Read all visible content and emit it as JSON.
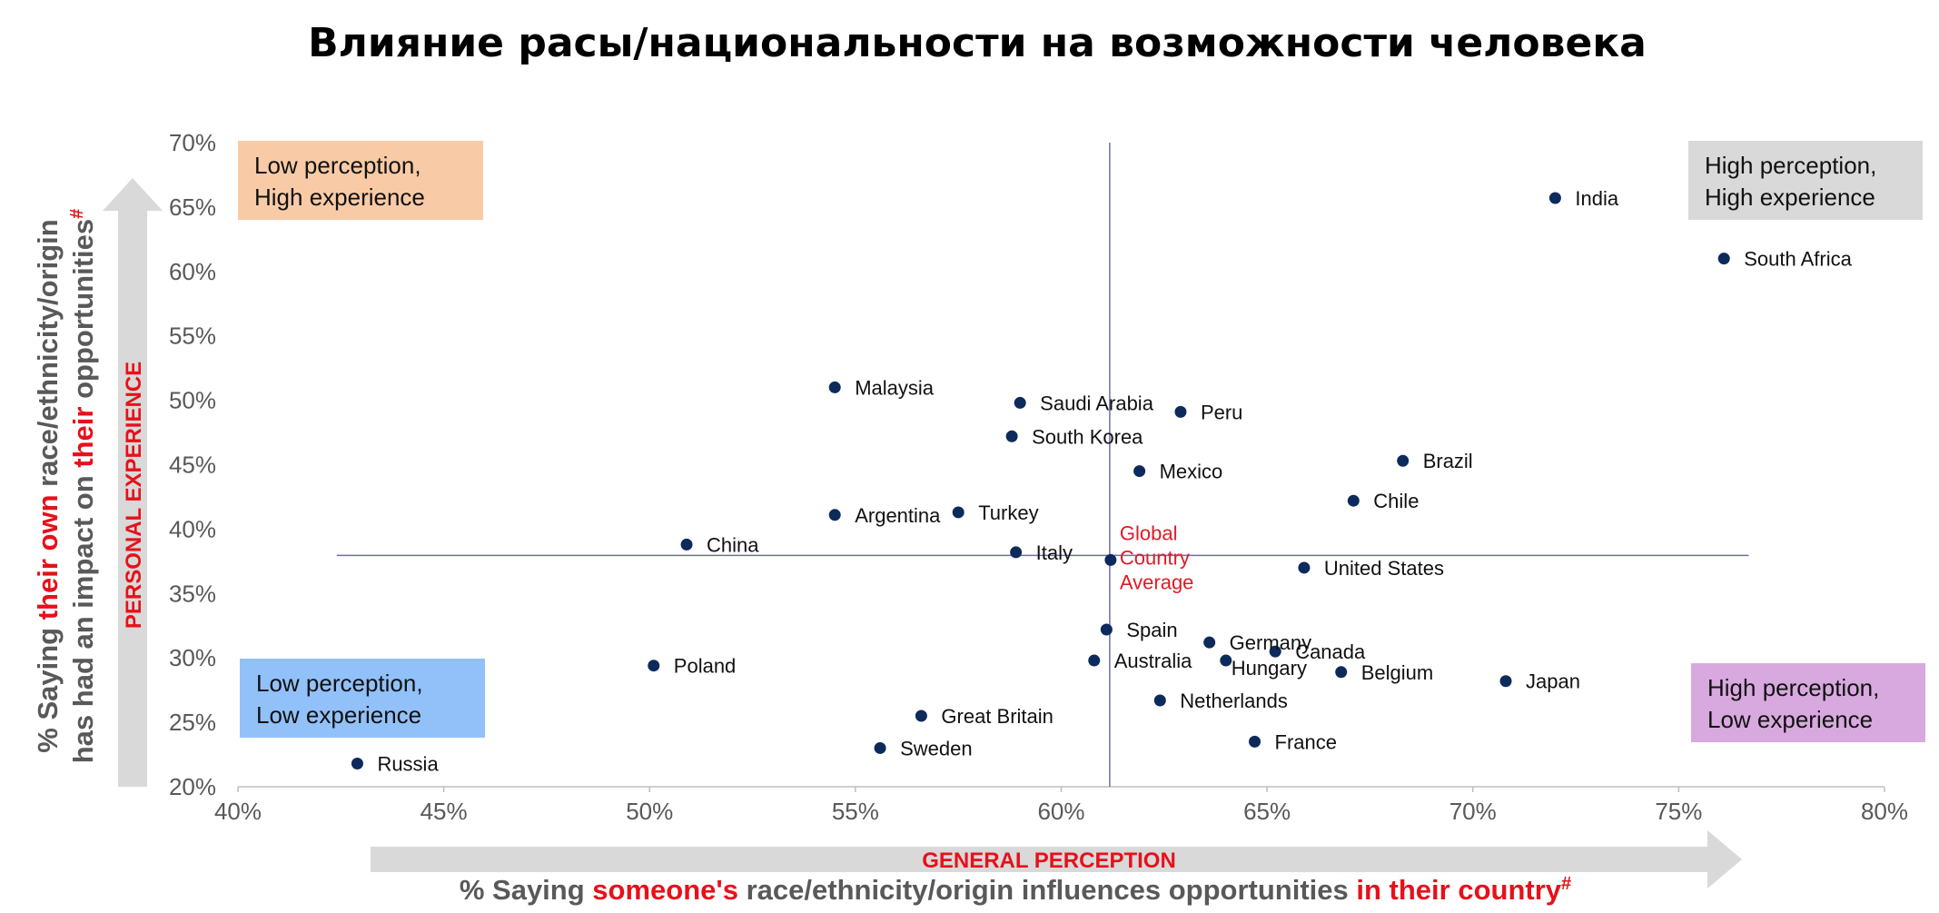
{
  "chart_data": {
    "type": "scatter",
    "title": "Влияние расы/национальности на возможности человека",
    "xlim": [
      0.4,
      0.8
    ],
    "ylim": [
      0.2,
      0.7
    ],
    "x_ticks": [
      "40%",
      "45%",
      "50%",
      "55%",
      "60%",
      "65%",
      "70%",
      "75%",
      "80%"
    ],
    "y_ticks": [
      "20%",
      "25%",
      "30%",
      "35%",
      "40%",
      "45%",
      "50%",
      "55%",
      "60%",
      "65%",
      "70%"
    ],
    "points": [
      {
        "name": "India",
        "x": 0.72,
        "y": 0.657
      },
      {
        "name": "South Africa",
        "x": 0.761,
        "y": 0.61
      },
      {
        "name": "Malaysia",
        "x": 0.545,
        "y": 0.51
      },
      {
        "name": "Saudi Arabia",
        "x": 0.59,
        "y": 0.498
      },
      {
        "name": "Peru",
        "x": 0.629,
        "y": 0.491
      },
      {
        "name": "South Korea",
        "x": 0.588,
        "y": 0.472
      },
      {
        "name": "Brazil",
        "x": 0.683,
        "y": 0.453
      },
      {
        "name": "Mexico",
        "x": 0.619,
        "y": 0.445
      },
      {
        "name": "Chile",
        "x": 0.671,
        "y": 0.422
      },
      {
        "name": "Argentina",
        "x": 0.545,
        "y": 0.411
      },
      {
        "name": "Turkey",
        "x": 0.575,
        "y": 0.413
      },
      {
        "name": "China",
        "x": 0.509,
        "y": 0.388
      },
      {
        "name": "Italy",
        "x": 0.589,
        "y": 0.382
      },
      {
        "name": "United States",
        "x": 0.659,
        "y": 0.37
      },
      {
        "name": "Spain",
        "x": 0.611,
        "y": 0.322
      },
      {
        "name": "Germany",
        "x": 0.636,
        "y": 0.312
      },
      {
        "name": "Canada",
        "x": 0.652,
        "y": 0.305
      },
      {
        "name": "Australia",
        "x": 0.608,
        "y": 0.298
      },
      {
        "name": "Hungary",
        "x": 0.64,
        "y": 0.298
      },
      {
        "name": "Belgium",
        "x": 0.668,
        "y": 0.289
      },
      {
        "name": "Japan",
        "x": 0.708,
        "y": 0.282
      },
      {
        "name": "Poland",
        "x": 0.501,
        "y": 0.294
      },
      {
        "name": "Netherlands",
        "x": 0.624,
        "y": 0.267
      },
      {
        "name": "Great Britain",
        "x": 0.566,
        "y": 0.255
      },
      {
        "name": "France",
        "x": 0.647,
        "y": 0.235
      },
      {
        "name": "Sweden",
        "x": 0.556,
        "y": 0.23
      },
      {
        "name": "Russia",
        "x": 0.429,
        "y": 0.218
      }
    ],
    "average": {
      "x": 0.612,
      "y": 0.376,
      "label_lines": [
        "Global",
        "Country",
        "Average"
      ]
    },
    "quadrants": [
      {
        "key": "tl",
        "lines": [
          "Low perception,",
          "High experience"
        ],
        "color": "#f8cba6"
      },
      {
        "key": "tr",
        "lines": [
          "High perception,",
          "High experience"
        ],
        "color": "#d9d9d9"
      },
      {
        "key": "bl",
        "lines": [
          "Low perception,",
          "Low experience"
        ],
        "color": "#92c1f9"
      },
      {
        "key": "br",
        "lines": [
          "High perception,",
          "Low experience"
        ],
        "color": "#d8a9df"
      }
    ],
    "x_axis": {
      "band_label": "GENERAL PERCEPTION",
      "title_parts": [
        {
          "text": "% Saying ",
          "accent": false
        },
        {
          "text": "someone's",
          "accent": true
        },
        {
          "text": " race/ethnicity/origin influences opportunities ",
          "accent": false
        },
        {
          "text": "in their country",
          "accent": true
        },
        {
          "text": "#",
          "accent": true,
          "superscript": true
        }
      ]
    },
    "y_axis": {
      "band_label": "PERSONAL EXPERIENCE",
      "title_line1_parts": [
        {
          "text": "% Saying ",
          "accent": false
        },
        {
          "text": "their own",
          "accent": true
        },
        {
          "text": " race/ethnicity/origin",
          "accent": false
        }
      ],
      "title_line2_parts": [
        {
          "text": "has had an impact on ",
          "accent": false
        },
        {
          "text": "their",
          "accent": true
        },
        {
          "text": " opportunities",
          "accent": false
        },
        {
          "text": "#",
          "accent": true,
          "superscript": true
        }
      ]
    },
    "colors": {
      "point": "#0d2a5c",
      "crosshair": "#6b6fa8",
      "accent": "#e8101a",
      "arrow": "#d9d9d9",
      "axis_text": "#595959"
    }
  }
}
